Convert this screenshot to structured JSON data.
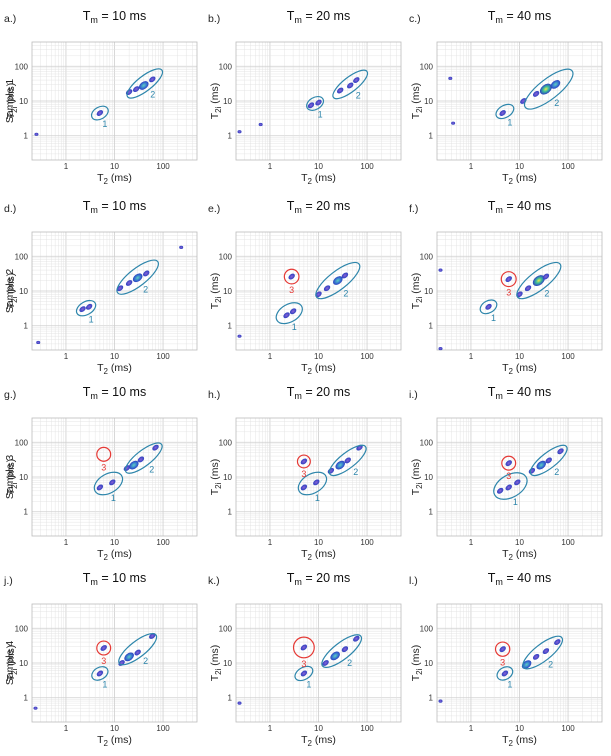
{
  "figure": {
    "axis": {
      "xlabel_main": "T",
      "xlabel_sub": "2",
      "xlabel_unit": " (ms)",
      "ylabel_main": "T",
      "ylabel_sub": "2i",
      "ylabel_unit": " (ms)",
      "xticks": [
        {
          "value": 1,
          "label": "1"
        },
        {
          "value": 10,
          "label": "10"
        },
        {
          "value": 100,
          "label": "100"
        }
      ],
      "yticks": [
        {
          "value": 1,
          "label": "1"
        },
        {
          "value": 10,
          "label": "10"
        },
        {
          "value": 100,
          "label": "100"
        }
      ],
      "xlim": [
        0.2,
        500
      ],
      "ylim": [
        0.2,
        500
      ],
      "scale": "log"
    },
    "rows": [
      {
        "label": "Sample 1"
      },
      {
        "label": "Sample 2"
      },
      {
        "label": "Sample 3"
      },
      {
        "label": "Sample 4"
      }
    ],
    "colors": {
      "ellipse_blue": "#2e86ab",
      "ellipse_red": "#e53935",
      "grid": "#e2e2e2",
      "peak_outer": "#2b3fbf",
      "peak_mid": "#2fb39a",
      "peak_hot": "#e8e04a"
    }
  },
  "chart_data": [
    {
      "type": "contour",
      "panel": "a.)",
      "sample": "Sample 1",
      "title_main": "T",
      "title_sub": "m",
      "title_val": " = 10 ms",
      "clusters": [
        {
          "label": "1",
          "color": "red_no",
          "ring": "blue",
          "center": [
            5,
            4.5
          ],
          "extent": [
            3.2,
            7.5
          ],
          "peaks": [
            [
              5,
              4.5,
              1
            ]
          ]
        },
        {
          "label": "2",
          "ring": "blue",
          "center": [
            42,
            32
          ],
          "extent": [
            14,
            110
          ],
          "peaks": [
            [
              20,
              18,
              1
            ],
            [
              28,
              22,
              1
            ],
            [
              40,
              28,
              2
            ],
            [
              60,
              42,
              1
            ]
          ]
        }
      ],
      "artifacts": [
        [
          0.23,
          1.1
        ]
      ]
    },
    {
      "type": "contour",
      "panel": "b.)",
      "sample": "Sample 1",
      "title_main": "T",
      "title_sub": "m",
      "title_val": " = 20 ms",
      "clusters": [
        {
          "label": "1",
          "ring": "blue",
          "center": [
            8.5,
            8.5
          ],
          "extent": [
            5.5,
            13
          ],
          "peaks": [
            [
              7,
              7.5,
              1
            ],
            [
              10,
              9,
              1
            ]
          ]
        },
        {
          "label": "2",
          "ring": "blue",
          "center": [
            45,
            30
          ],
          "extent": [
            16,
            120
          ],
          "peaks": [
            [
              28,
              20,
              1
            ],
            [
              45,
              28,
              1
            ],
            [
              60,
              40,
              1
            ]
          ]
        }
      ],
      "artifacts": [
        [
          0.22,
          1.3
        ],
        [
          0.6,
          2.1
        ]
      ]
    },
    {
      "type": "contour",
      "panel": "c.)",
      "sample": "Sample 1",
      "title_main": "T",
      "title_sub": "m",
      "title_val": " = 40 ms",
      "clusters": [
        {
          "label": "1",
          "ring": "blue",
          "center": [
            5,
            5
          ],
          "extent": [
            3.2,
            8
          ],
          "peaks": [
            [
              4.5,
              4.5,
              1
            ]
          ]
        },
        {
          "label": "2",
          "ring": "blue",
          "center": [
            40,
            22
          ],
          "extent": [
            9,
            150
          ],
          "peaks": [
            [
              12,
              10,
              1
            ],
            [
              22,
              16,
              1
            ],
            [
              35,
              22,
              3
            ],
            [
              55,
              30,
              2
            ]
          ]
        }
      ],
      "artifacts": [
        [
          0.35,
          45
        ],
        [
          0.4,
          2.3
        ]
      ]
    },
    {
      "type": "contour",
      "panel": "d.)",
      "sample": "Sample 2",
      "title_main": "T",
      "title_sub": "m",
      "title_val": " = 10 ms",
      "clusters": [
        {
          "label": "1",
          "ring": "blue",
          "center": [
            2.6,
            3.2
          ],
          "extent": [
            1.6,
            4.3
          ],
          "peaks": [
            [
              2.2,
              3,
              1
            ],
            [
              3,
              3.5,
              1
            ]
          ]
        },
        {
          "label": "2",
          "ring": "blue",
          "center": [
            30,
            25
          ],
          "extent": [
            9,
            100
          ],
          "peaks": [
            [
              13,
              12,
              1
            ],
            [
              20,
              17,
              1
            ],
            [
              30,
              24,
              2
            ],
            [
              45,
              32,
              1
            ]
          ]
        }
      ],
      "artifacts": [
        [
          0.25,
          0.33
        ],
        [
          220,
          180
        ]
      ]
    },
    {
      "type": "contour",
      "panel": "e.)",
      "sample": "Sample 2",
      "title_main": "T",
      "title_sub": "m",
      "title_val": " = 20 ms",
      "clusters": [
        {
          "label": "1",
          "ring": "blue",
          "center": [
            2.5,
            2.3
          ],
          "extent": [
            1.3,
            5
          ],
          "peaks": [
            [
              2.2,
              2,
              1
            ],
            [
              3,
              2.6,
              1
            ]
          ]
        },
        {
          "label": "2",
          "ring": "blue",
          "center": [
            25,
            20
          ],
          "extent": [
            7,
            90
          ],
          "peaks": [
            [
              10,
              8,
              1
            ],
            [
              15,
              12,
              1
            ],
            [
              25,
              20,
              2
            ],
            [
              35,
              28,
              1
            ]
          ]
        },
        {
          "label": "3",
          "ring": "red",
          "center": [
            2.8,
            26
          ],
          "extent": [
            2,
            4
          ],
          "peaks": [
            [
              2.8,
              26,
              1
            ]
          ]
        }
      ],
      "artifacts": [
        [
          0.22,
          0.5
        ]
      ]
    },
    {
      "type": "contour",
      "panel": "f.)",
      "sample": "Sample 2",
      "title_main": "T",
      "title_sub": "m",
      "title_val": " = 40 ms",
      "clusters": [
        {
          "label": "1",
          "ring": "blue",
          "center": [
            2.3,
            3.5
          ],
          "extent": [
            1.5,
            3.5
          ],
          "peaks": [
            [
              2.3,
              3.5,
              1
            ]
          ]
        },
        {
          "label": "2",
          "ring": "blue",
          "center": [
            25,
            20
          ],
          "extent": [
            7,
            90
          ],
          "peaks": [
            [
              10,
              8,
              1
            ],
            [
              15,
              12,
              1
            ],
            [
              25,
              20,
              3
            ],
            [
              35,
              26,
              1
            ]
          ]
        },
        {
          "label": "3",
          "ring": "red",
          "center": [
            6,
            22
          ],
          "extent": [
            4.2,
            8.5
          ],
          "peaks": [
            [
              6,
              22,
              1
            ]
          ]
        }
      ],
      "artifacts": [
        [
          0.22,
          0.22
        ],
        [
          0.22,
          40
        ]
      ]
    },
    {
      "type": "contour",
      "panel": "g.)",
      "sample": "Sample 3",
      "title_main": "T",
      "title_sub": "m",
      "title_val": " = 10 ms",
      "clusters": [
        {
          "label": "1",
          "ring": "blue",
          "center": [
            7.5,
            6.5
          ],
          "extent": [
            3.5,
            15
          ],
          "peaks": [
            [
              5,
              5,
              1
            ],
            [
              9,
              7,
              1
            ]
          ]
        },
        {
          "label": "2",
          "ring": "blue",
          "center": [
            40,
            35
          ],
          "extent": [
            13,
            110
          ],
          "peaks": [
            [
              18,
              18,
              1
            ],
            [
              25,
              22,
              2
            ],
            [
              35,
              32,
              1
            ],
            [
              70,
              70,
              1
            ]
          ]
        },
        {
          "label": "3",
          "ring": "red",
          "center": [
            6,
            45
          ],
          "extent": [
            4.3,
            8.3
          ],
          "peaks": []
        }
      ],
      "artifacts": []
    },
    {
      "type": "contour",
      "panel": "h.)",
      "sample": "Sample 3",
      "title_main": "T",
      "title_sub": "m",
      "title_val": " = 20 ms",
      "clusters": [
        {
          "label": "1",
          "ring": "blue",
          "center": [
            7.5,
            6.5
          ],
          "extent": [
            3.5,
            15
          ],
          "peaks": [
            [
              5,
              5,
              1
            ],
            [
              9,
              7,
              1
            ]
          ]
        },
        {
          "label": "2",
          "ring": "blue",
          "center": [
            40,
            30
          ],
          "extent": [
            13,
            110
          ],
          "peaks": [
            [
              18,
              15,
              1
            ],
            [
              28,
              22,
              2
            ],
            [
              40,
              30,
              1
            ],
            [
              70,
              70,
              1
            ]
          ]
        },
        {
          "label": "3",
          "ring": "red",
          "center": [
            5,
            28
          ],
          "extent": [
            3.7,
            6.8
          ],
          "peaks": [
            [
              5,
              28,
              1
            ]
          ]
        }
      ],
      "artifacts": []
    },
    {
      "type": "contour",
      "panel": "i.)",
      "sample": "Sample 3",
      "title_main": "T",
      "title_sub": "m",
      "title_val": " = 40 ms",
      "clusters": [
        {
          "label": "1",
          "ring": "blue",
          "center": [
            6.5,
            5.5
          ],
          "extent": [
            2.7,
            15
          ],
          "peaks": [
            [
              4,
              4,
              1
            ],
            [
              6,
              5,
              1
            ],
            [
              9,
              7,
              1
            ]
          ]
        },
        {
          "label": "2",
          "ring": "blue",
          "center": [
            40,
            30
          ],
          "extent": [
            13,
            110
          ],
          "peaks": [
            [
              18,
              15,
              1
            ],
            [
              28,
              22,
              2
            ],
            [
              40,
              30,
              1
            ],
            [
              70,
              55,
              1
            ]
          ]
        },
        {
          "label": "3",
          "ring": "red",
          "center": [
            6,
            25
          ],
          "extent": [
            4.3,
            8.3
          ],
          "peaks": [
            [
              6,
              25,
              1
            ]
          ]
        }
      ],
      "artifacts": []
    },
    {
      "type": "contour",
      "panel": "j.)",
      "sample": "Sample 4",
      "title_main": "T",
      "title_sub": "m",
      "title_val": " = 10 ms",
      "clusters": [
        {
          "label": "1",
          "ring": "blue",
          "center": [
            5,
            5
          ],
          "extent": [
            3.3,
            7.5
          ],
          "peaks": [
            [
              5,
              5,
              1
            ]
          ]
        },
        {
          "label": "2",
          "ring": "blue",
          "center": [
            30,
            25
          ],
          "extent": [
            10,
            90
          ],
          "peaks": [
            [
              14,
              10,
              1
            ],
            [
              20,
              15,
              2
            ],
            [
              30,
              20,
              1
            ],
            [
              60,
              60,
              1
            ]
          ]
        },
        {
          "label": "3",
          "ring": "red",
          "center": [
            6,
            27
          ],
          "extent": [
            4.3,
            8.3
          ],
          "peaks": [
            [
              6,
              27,
              1
            ]
          ]
        }
      ],
      "artifacts": [
        [
          0.22,
          0.5
        ]
      ]
    },
    {
      "type": "contour",
      "panel": "k.)",
      "sample": "Sample 4",
      "title_main": "T",
      "title_sub": "m",
      "title_val": " = 20 ms",
      "clusters": [
        {
          "label": "1",
          "ring": "blue",
          "center": [
            5,
            5
          ],
          "extent": [
            3.2,
            8
          ],
          "peaks": [
            [
              5,
              5,
              1
            ]
          ]
        },
        {
          "label": "2",
          "ring": "blue",
          "center": [
            30,
            22
          ],
          "extent": [
            10,
            100
          ],
          "peaks": [
            [
              14,
              10,
              1
            ],
            [
              22,
              16,
              2
            ],
            [
              35,
              25,
              1
            ],
            [
              60,
              50,
              1
            ]
          ]
        },
        {
          "label": "3",
          "ring": "red",
          "center": [
            5,
            28
          ],
          "extent": [
            3,
            8
          ],
          "peaks": [
            [
              5,
              28,
              1
            ]
          ]
        }
      ],
      "artifacts": [
        [
          0.22,
          0.7
        ]
      ]
    },
    {
      "type": "contour",
      "panel": "l.)",
      "sample": "Sample 4",
      "title_main": "T",
      "title_sub": "m",
      "title_val": " = 40 ms",
      "clusters": [
        {
          "label": "1",
          "ring": "blue",
          "center": [
            5,
            5
          ],
          "extent": [
            3.4,
            7.5
          ],
          "peaks": [
            [
              5,
              5,
              1
            ]
          ]
        },
        {
          "label": "2",
          "ring": "blue",
          "center": [
            30,
            20
          ],
          "extent": [
            10,
            100
          ],
          "peaks": [
            [
              14,
              9,
              2
            ],
            [
              22,
              15,
              1
            ],
            [
              35,
              22,
              1
            ],
            [
              60,
              40,
              1
            ]
          ]
        },
        {
          "label": "3",
          "ring": "red",
          "center": [
            4.5,
            25
          ],
          "extent": [
            3.2,
            6.3
          ],
          "peaks": [
            [
              4.5,
              25,
              1
            ]
          ]
        }
      ],
      "artifacts": [
        [
          0.22,
          0.8
        ]
      ]
    }
  ]
}
